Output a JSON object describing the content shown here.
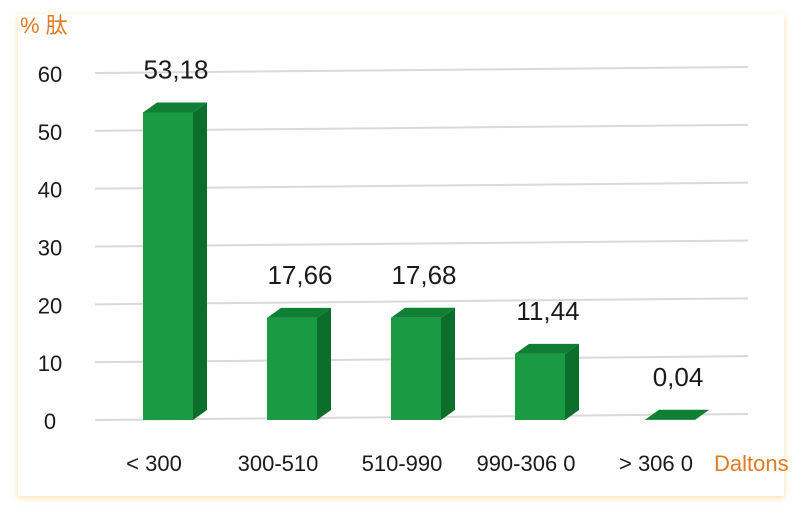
{
  "chart_data": {
    "type": "bar",
    "title": "",
    "ylabel": "% 肽",
    "xlabel": "Daltons",
    "categories": [
      "< 300",
      "300-510",
      "510-990",
      "990-306 0",
      "> 306 0"
    ],
    "values": [
      53.18,
      17.66,
      17.68,
      11.44,
      0.04
    ],
    "value_labels": [
      "53,18",
      "17,66",
      "17,68",
      "11,44",
      "0,04"
    ],
    "ylim": [
      0,
      60
    ],
    "yticks": [
      "0",
      "10",
      "20",
      "30",
      "40",
      "50",
      "60"
    ],
    "grid": true,
    "legend": "none",
    "colors": {
      "bar_front": "#1a9a42",
      "bar_side": "#0b6e2a",
      "bar_top": "#0f7f34",
      "grid": "#d9d9d9",
      "axis_label": "#e07b22"
    }
  }
}
